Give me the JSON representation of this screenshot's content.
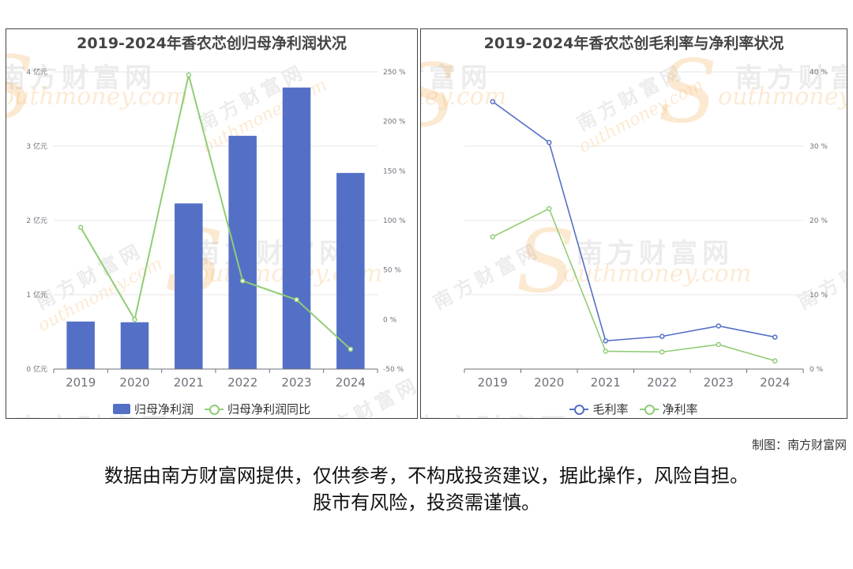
{
  "watermark": {
    "cn": "南方财富网",
    "en": "outhmoney.com",
    "s": "S"
  },
  "credit": "制图：南方财富网",
  "disclaimer": {
    "line1": "数据由南方财富网提供，仅供参考，不构成投资建议，据此操作，风险自担。",
    "line2": "股市有风险，投资需谨慎。"
  },
  "colors": {
    "bar": "#5470c6",
    "green": "#91cc75",
    "blue": "#5470c6",
    "grid": "#e6e6e6",
    "axis": "#6e7079"
  },
  "chart_data": [
    {
      "type": "bar",
      "title": "2019-2024年香农芯创归母净利润状况",
      "categories": [
        "2019",
        "2020",
        "2021",
        "2022",
        "2023",
        "2024"
      ],
      "series": [
        {
          "name": "归母净利润",
          "type": "bar",
          "axis": "left",
          "values": [
            0.64,
            0.63,
            2.23,
            3.14,
            3.79,
            2.64
          ]
        },
        {
          "name": "归母净利润同比",
          "type": "line",
          "axis": "right",
          "values": [
            93,
            0,
            247,
            39,
            20,
            -30
          ]
        }
      ],
      "y_left": {
        "min": 0,
        "max": 4,
        "ticks": [
          0,
          1,
          2,
          3,
          4
        ],
        "tick_labels": [
          "0 亿元",
          "1 亿元",
          "2 亿元",
          "3 亿元",
          "4 亿元"
        ]
      },
      "y_right": {
        "min": -50,
        "max": 250,
        "ticks": [
          -50,
          0,
          50,
          100,
          150,
          200,
          250
        ],
        "tick_labels": [
          "-50 %",
          "0 %",
          "50 %",
          "100 %",
          "150 %",
          "200 %",
          "250 %"
        ]
      },
      "grid": true,
      "legend": "bottom"
    },
    {
      "type": "line",
      "title": "2019-2024年香农芯创毛利率与净利率状况",
      "categories": [
        "2019",
        "2020",
        "2021",
        "2022",
        "2023",
        "2024"
      ],
      "series": [
        {
          "name": "毛利率",
          "values": [
            36.0,
            30.5,
            3.8,
            4.4,
            5.8,
            4.3
          ]
        },
        {
          "name": "净利率",
          "values": [
            17.8,
            21.6,
            2.4,
            2.3,
            3.3,
            1.1
          ]
        }
      ],
      "y_right": {
        "min": 0,
        "max": 40,
        "ticks": [
          0,
          10,
          20,
          30,
          40
        ],
        "tick_labels": [
          "0 %",
          "10 %",
          "20 %",
          "30 %",
          "40 %"
        ]
      },
      "grid": true,
      "legend": "bottom"
    }
  ]
}
